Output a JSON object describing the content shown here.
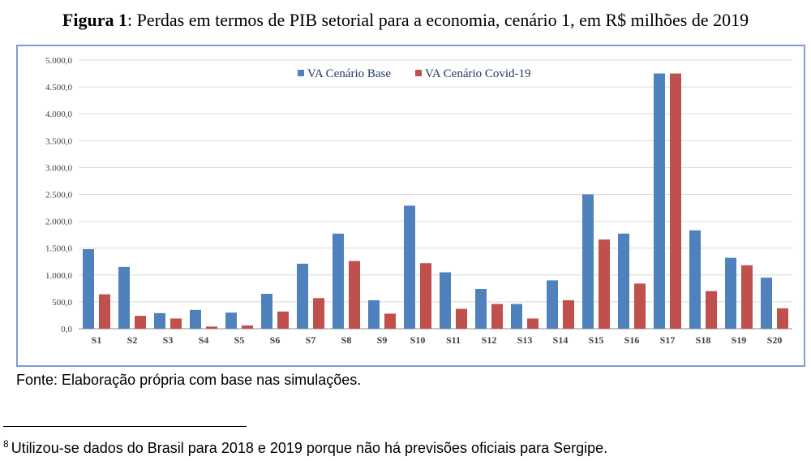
{
  "figure": {
    "label": "Figura 1",
    "caption": ": Perdas em termos de PIB setorial para a economia, cenário 1, em R$ milhões de 2019"
  },
  "chart_data": {
    "type": "bar",
    "categories": [
      "S1",
      "S2",
      "S3",
      "S4",
      "S5",
      "S6",
      "S7",
      "S8",
      "S9",
      "S10",
      "S11",
      "S12",
      "S13",
      "S14",
      "S15",
      "S16",
      "S17",
      "S18",
      "S19",
      "S20"
    ],
    "series": [
      {
        "name": "VA Cenário Base",
        "color": "#4f81bd",
        "values": [
          1480,
          1150,
          290,
          350,
          300,
          650,
          1210,
          1770,
          530,
          2290,
          1050,
          740,
          460,
          900,
          2500,
          1770,
          4750,
          1830,
          1320,
          950
        ]
      },
      {
        "name": "VA Cenário Covid-19",
        "color": "#c0504d",
        "values": [
          640,
          240,
          190,
          40,
          60,
          320,
          570,
          1260,
          280,
          1220,
          370,
          460,
          190,
          530,
          1660,
          840,
          4750,
          700,
          1180,
          380
        ]
      }
    ],
    "y_ticks": [
      "0,0",
      "500,0",
      "1.000,0",
      "1.500,0",
      "2.000,0",
      "2.500,0",
      "3.000,0",
      "3.500,0",
      "4.000,0",
      "4.500,0",
      "5.000,0"
    ],
    "ylim": [
      0,
      5000
    ],
    "ytick_step": 500,
    "grid": true,
    "legend_position": "top-center"
  },
  "source": "Fonte: Elaboração própria com base nas simulações.",
  "footnote": {
    "marker": "8",
    "text": "Utilizou-se dados do Brasil para 2018 e 2019 porque não há previsões oficiais para Sergipe."
  }
}
